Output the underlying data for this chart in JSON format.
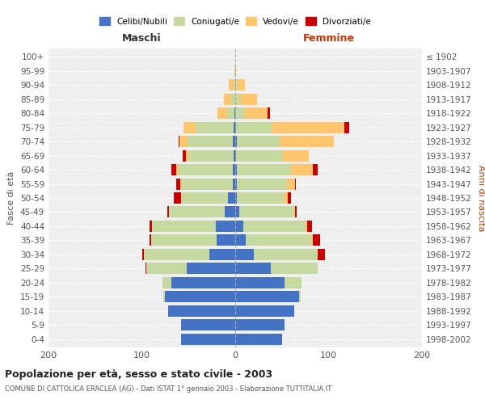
{
  "age_groups": [
    "0-4",
    "5-9",
    "10-14",
    "15-19",
    "20-24",
    "25-29",
    "30-34",
    "35-39",
    "40-44",
    "45-49",
    "50-54",
    "55-59",
    "60-64",
    "65-69",
    "70-74",
    "75-79",
    "80-84",
    "85-89",
    "90-94",
    "95-99",
    "100+"
  ],
  "birth_years": [
    "1998-2002",
    "1993-1997",
    "1988-1992",
    "1983-1987",
    "1978-1982",
    "1973-1977",
    "1968-1972",
    "1963-1967",
    "1958-1962",
    "1953-1957",
    "1948-1952",
    "1943-1947",
    "1938-1942",
    "1933-1937",
    "1928-1932",
    "1923-1927",
    "1918-1922",
    "1913-1917",
    "1908-1912",
    "1903-1907",
    "≤ 1902"
  ],
  "colors": {
    "celibi": "#4472C4",
    "coniugati": "#C5D9A0",
    "vedovi": "#FFC66D",
    "divorziati": "#CC0000"
  },
  "males": {
    "celibi": [
      58,
      58,
      72,
      75,
      68,
      52,
      28,
      20,
      21,
      11,
      8,
      3,
      3,
      2,
      3,
      2,
      1,
      0,
      0,
      0,
      0
    ],
    "coniugati": [
      0,
      0,
      0,
      2,
      10,
      43,
      70,
      70,
      68,
      60,
      50,
      55,
      58,
      48,
      48,
      40,
      8,
      4,
      2,
      0,
      0
    ],
    "vedovi": [
      0,
      0,
      0,
      0,
      0,
      0,
      0,
      0,
      0,
      0,
      0,
      1,
      2,
      3,
      9,
      13,
      10,
      8,
      5,
      1,
      0
    ],
    "divorziati": [
      0,
      0,
      0,
      0,
      0,
      1,
      2,
      2,
      3,
      2,
      8,
      4,
      5,
      3,
      1,
      0,
      0,
      0,
      0,
      0,
      0
    ]
  },
  "females": {
    "celibi": [
      50,
      53,
      63,
      68,
      53,
      38,
      20,
      11,
      9,
      4,
      2,
      2,
      2,
      1,
      2,
      1,
      0,
      0,
      0,
      0,
      0
    ],
    "coniugati": [
      0,
      0,
      0,
      2,
      18,
      50,
      68,
      70,
      66,
      58,
      50,
      53,
      58,
      50,
      46,
      38,
      10,
      5,
      2,
      0,
      0
    ],
    "vedovi": [
      0,
      0,
      0,
      0,
      0,
      0,
      0,
      2,
      2,
      2,
      4,
      9,
      23,
      28,
      58,
      78,
      25,
      18,
      8,
      1,
      0
    ],
    "divorziati": [
      0,
      0,
      0,
      0,
      0,
      0,
      8,
      8,
      5,
      2,
      4,
      1,
      5,
      0,
      0,
      5,
      2,
      0,
      0,
      0,
      0
    ]
  },
  "title": "Popolazione per età, sesso e stato civile - 2003",
  "subtitle": "COMUNE DI CATTOLICA ERACLEA (AG) - Dati ISTAT 1° gennaio 2003 - Elaborazione TUTTITALIA.IT",
  "xlabel_left": "Maschi",
  "xlabel_right": "Femmine",
  "ylabel_left": "Fasce di età",
  "ylabel_right": "Anni di nascita",
  "legend_labels": [
    "Celibi/Nubili",
    "Coniugati/e",
    "Vedovi/e",
    "Divorziati/e"
  ],
  "xlim": 200,
  "background_color": "#efefef"
}
